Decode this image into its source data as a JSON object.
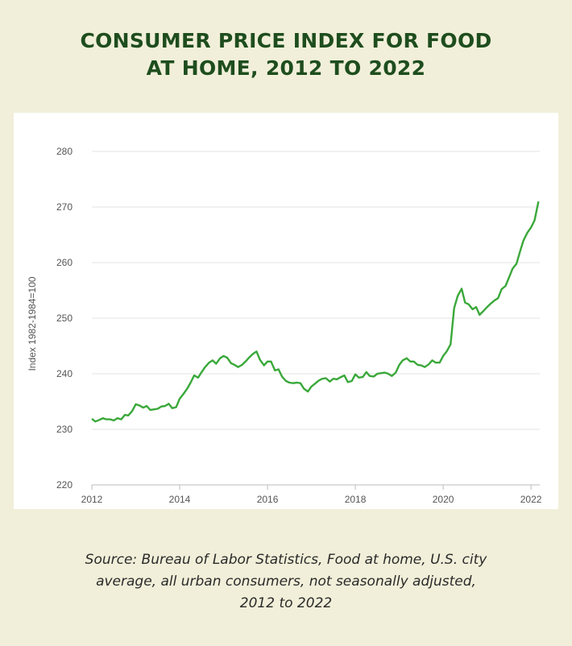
{
  "title_lines": [
    "CONSUMER PRICE INDEX FOR FOOD",
    "AT HOME, 2012 TO 2022"
  ],
  "source_lines": [
    "Source: Bureau of Labor Statistics, Food at home, U.S. city",
    "average, all urban consumers, not seasonally adjusted,",
    "2012 to 2022"
  ],
  "colors": {
    "line": "#3aa83a",
    "title": "#1e4d1e",
    "background": "#f1efd9",
    "grid": "#e3e3e3"
  },
  "chart_data": {
    "type": "line",
    "title": "",
    "xlabel": "",
    "ylabel": "Index 1982-1984=100",
    "xlim": [
      2012,
      2022.2
    ],
    "ylim": [
      220,
      280
    ],
    "yticks": [
      220,
      230,
      240,
      250,
      260,
      270,
      280
    ],
    "xticks": [
      2012,
      2014,
      2016,
      2018,
      2020,
      2022
    ],
    "grid": "horizontal",
    "series": [
      {
        "name": "",
        "x": [
          2012.0,
          2012.08,
          2012.17,
          2012.25,
          2012.33,
          2012.42,
          2012.5,
          2012.58,
          2012.67,
          2012.75,
          2012.83,
          2012.92,
          2013.0,
          2013.08,
          2013.17,
          2013.25,
          2013.33,
          2013.42,
          2013.5,
          2013.58,
          2013.67,
          2013.75,
          2013.83,
          2013.92,
          2014.0,
          2014.08,
          2014.17,
          2014.25,
          2014.33,
          2014.42,
          2014.5,
          2014.58,
          2014.67,
          2014.75,
          2014.83,
          2014.92,
          2015.0,
          2015.08,
          2015.17,
          2015.25,
          2015.33,
          2015.42,
          2015.5,
          2015.58,
          2015.67,
          2015.75,
          2015.83,
          2015.92,
          2016.0,
          2016.08,
          2016.17,
          2016.25,
          2016.33,
          2016.42,
          2016.5,
          2016.58,
          2016.67,
          2016.75,
          2016.83,
          2016.92,
          2017.0,
          2017.08,
          2017.17,
          2017.25,
          2017.33,
          2017.42,
          2017.5,
          2017.58,
          2017.67,
          2017.75,
          2017.83,
          2017.92,
          2018.0,
          2018.08,
          2018.17,
          2018.25,
          2018.33,
          2018.42,
          2018.5,
          2018.58,
          2018.67,
          2018.75,
          2018.83,
          2018.92,
          2019.0,
          2019.08,
          2019.17,
          2019.25,
          2019.33,
          2019.42,
          2019.5,
          2019.58,
          2019.67,
          2019.75,
          2019.83,
          2019.92,
          2020.0,
          2020.08,
          2020.17,
          2020.25,
          2020.33,
          2020.42,
          2020.5,
          2020.58,
          2020.67,
          2020.75,
          2020.83,
          2020.92,
          2021.0,
          2021.08,
          2021.17,
          2021.25,
          2021.33,
          2021.42,
          2021.5,
          2021.58,
          2021.67,
          2021.75,
          2021.83,
          2021.92,
          2022.0,
          2022.08,
          2022.17
        ],
        "y": [
          231.9,
          231.4,
          231.7,
          232.0,
          231.8,
          231.8,
          231.6,
          232.0,
          231.8,
          232.6,
          232.5,
          233.3,
          234.5,
          234.3,
          233.9,
          234.2,
          233.5,
          233.6,
          233.7,
          234.1,
          234.2,
          234.6,
          233.8,
          234.0,
          235.5,
          236.3,
          237.3,
          238.4,
          239.7,
          239.3,
          240.3,
          241.2,
          242.0,
          242.4,
          241.8,
          242.8,
          243.2,
          242.9,
          241.9,
          241.6,
          241.2,
          241.6,
          242.2,
          242.9,
          243.6,
          244.0,
          242.5,
          241.5,
          242.2,
          242.2,
          240.6,
          240.8,
          239.5,
          238.7,
          238.4,
          238.3,
          238.4,
          238.3,
          237.3,
          236.8,
          237.7,
          238.2,
          238.8,
          239.1,
          239.2,
          238.6,
          239.1,
          239.0,
          239.4,
          239.7,
          238.5,
          238.7,
          239.9,
          239.3,
          239.4,
          240.3,
          239.6,
          239.5,
          240.0,
          240.1,
          240.2,
          240.0,
          239.6,
          240.2,
          241.6,
          242.4,
          242.8,
          242.2,
          242.2,
          241.6,
          241.5,
          241.2,
          241.7,
          242.4,
          242.0,
          242.0,
          243.2,
          244.0,
          245.3,
          251.8,
          254.0,
          255.3,
          252.8,
          252.5,
          251.6,
          252.0,
          250.6,
          251.3,
          252.0,
          252.6,
          253.2,
          253.6,
          255.2,
          255.8,
          257.3,
          258.9,
          259.8,
          262.0,
          264.0,
          265.4,
          266.3,
          267.6,
          271.0
        ]
      }
    ]
  }
}
